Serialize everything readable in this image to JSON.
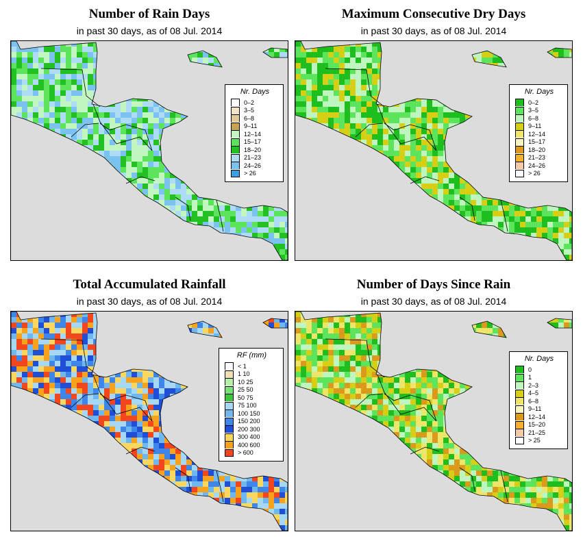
{
  "panels": [
    {
      "id": "rain_days",
      "title": "Number of Rain Days",
      "subtitle": "in past 30 days, as of  08 Jul. 2014",
      "legend": {
        "title": "Nr. Days",
        "items": [
          {
            "label": "0–2",
            "color": "#ffffff"
          },
          {
            "label": "3–5",
            "color": "#f2e4c8"
          },
          {
            "label": "6–8",
            "color": "#e3cb98"
          },
          {
            "label": "9–11",
            "color": "#c8a450"
          },
          {
            "label": "12–14",
            "color": "#c2f7c2"
          },
          {
            "label": "15–17",
            "color": "#5ce55c"
          },
          {
            "label": "18–20",
            "color": "#22c022"
          },
          {
            "label": "21–23",
            "color": "#aedcf5"
          },
          {
            "label": "24–26",
            "color": "#7bc2ee"
          },
          {
            "label": "> 26",
            "color": "#3aa0e3"
          }
        ]
      }
    },
    {
      "id": "dry_days",
      "title": "Maximum Consecutive Dry Days",
      "subtitle": "in past 30 days, as of  08 Jul. 2014",
      "legend": {
        "title": "Nr. Days",
        "items": [
          {
            "label": "0–2",
            "color": "#1fbe1f"
          },
          {
            "label": "3–5",
            "color": "#5ce55c"
          },
          {
            "label": "6–8",
            "color": "#bff5bf"
          },
          {
            "label": "9–11",
            "color": "#d6cf15"
          },
          {
            "label": "12–14",
            "color": "#eee56a"
          },
          {
            "label": "15–17",
            "color": "#fbf6bf"
          },
          {
            "label": "18–20",
            "color": "#dc9a1c"
          },
          {
            "label": "21–23",
            "color": "#f6b030"
          },
          {
            "label": "24–26",
            "color": "#f8c9a5"
          },
          {
            "label": "> 26",
            "color": "#ffffff"
          }
        ]
      }
    },
    {
      "id": "rainfall",
      "title": "Total Accumulated Rainfall",
      "subtitle": "in past 30 days, as of  08 Jul. 2014",
      "legend": {
        "title": "RF (mm)",
        "items": [
          {
            "label": "< 1",
            "color": "#ffffff"
          },
          {
            "label": "1  10",
            "color": "#f2dfb4"
          },
          {
            "label": "10  25",
            "color": "#b6f0a6"
          },
          {
            "label": "25  50",
            "color": "#78e278"
          },
          {
            "label": "50  75",
            "color": "#3ec43e"
          },
          {
            "label": "75  100",
            "color": "#a6d8f4"
          },
          {
            "label": "100  150",
            "color": "#6fb7ef"
          },
          {
            "label": "150  200",
            "color": "#3e86ea"
          },
          {
            "label": "200  300",
            "color": "#1f4fd6"
          },
          {
            "label": "300  400",
            "color": "#fad860"
          },
          {
            "label": "400  600",
            "color": "#f6a21c"
          },
          {
            "label": "> 600",
            "color": "#f3461c"
          }
        ]
      }
    },
    {
      "id": "since_rain",
      "title": "Number of Days Since Rain",
      "subtitle": "in past 30 days, as of  08 Jul. 2014",
      "legend": {
        "title": "Nr. Days",
        "items": [
          {
            "label": "0",
            "color": "#1fbe1f"
          },
          {
            "label": "1",
            "color": "#5ce55c"
          },
          {
            "label": "2–3",
            "color": "#bff5bf"
          },
          {
            "label": "4–5",
            "color": "#d6cf15"
          },
          {
            "label": "6–8",
            "color": "#eee56a"
          },
          {
            "label": "9–11",
            "color": "#fbf6bf"
          },
          {
            "label": "12–14",
            "color": "#dc9a1c"
          },
          {
            "label": "15–20",
            "color": "#f6b030"
          },
          {
            "label": "21–25",
            "color": "#f8c9a5"
          },
          {
            "label": "> 25",
            "color": "#ffffff"
          }
        ]
      }
    }
  ]
}
